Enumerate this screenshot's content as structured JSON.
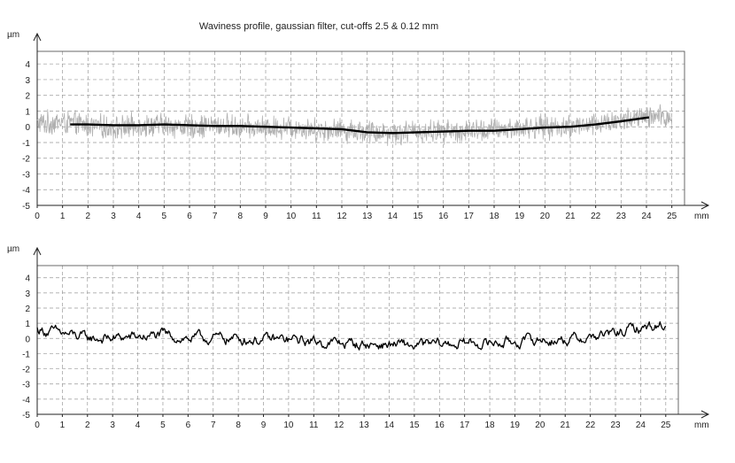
{
  "figure": {
    "title": "Waviness profile, gaussian filter, cut-offs 2.5 & 0.12 mm"
  },
  "chart_data": [
    {
      "type": "line",
      "title": "Waviness profile, gaussian filter, cut-offs 2.5 & 0.12 mm",
      "xlabel": "mm",
      "ylabel": "µm",
      "xlim": [
        0,
        25.5
      ],
      "ylim": [
        -5,
        5
      ],
      "x_ticks": [
        0,
        1,
        2,
        3,
        4,
        5,
        6,
        7,
        8,
        9,
        10,
        11,
        12,
        13,
        14,
        15,
        16,
        17,
        18,
        19,
        20,
        21,
        22,
        23,
        24,
        25
      ],
      "y_ticks": [
        -5,
        -4,
        -3,
        -2,
        -1,
        0,
        1,
        2,
        3,
        4
      ],
      "grid": true,
      "series": [
        {
          "role": "raw-profile",
          "color": "#b0b0b0",
          "x": [
            0,
            1,
            2,
            3,
            4,
            5,
            6,
            7,
            8,
            9,
            10,
            11,
            12,
            13,
            14,
            15,
            16,
            17,
            18,
            19,
            20,
            21,
            22,
            23,
            24,
            25
          ],
          "y": [
            0.2,
            0.3,
            0.1,
            -0.1,
            0.1,
            0.1,
            0.0,
            0.1,
            0.0,
            -0.1,
            0.0,
            -0.2,
            -0.2,
            -0.3,
            -0.4,
            -0.3,
            -0.3,
            -0.3,
            -0.2,
            -0.1,
            0.0,
            0.0,
            0.2,
            0.4,
            0.6,
            0.6
          ],
          "noise_amplitude": 0.9
        },
        {
          "role": "waviness-line",
          "color": "#000000",
          "x": [
            1.3,
            2,
            3,
            4,
            5,
            6,
            7,
            8,
            9,
            10,
            11,
            12,
            13,
            14,
            15,
            16,
            17,
            18,
            19,
            20,
            21,
            22,
            23,
            24.1
          ],
          "y": [
            0.15,
            0.15,
            0.1,
            0.1,
            0.15,
            0.1,
            0.05,
            0.05,
            0.0,
            -0.05,
            -0.1,
            -0.15,
            -0.35,
            -0.4,
            -0.35,
            -0.3,
            -0.25,
            -0.25,
            -0.15,
            -0.05,
            0.0,
            0.15,
            0.35,
            0.6
          ]
        }
      ]
    },
    {
      "type": "line",
      "xlabel": "mm",
      "ylabel": "µm",
      "xlim": [
        0,
        25.5
      ],
      "ylim": [
        -5,
        5
      ],
      "x_ticks": [
        0,
        1,
        2,
        3,
        4,
        5,
        6,
        7,
        8,
        9,
        10,
        11,
        12,
        13,
        14,
        15,
        16,
        17,
        18,
        19,
        20,
        21,
        22,
        23,
        24,
        25
      ],
      "y_ticks": [
        -5,
        -4,
        -3,
        -2,
        -1,
        0,
        1,
        2,
        3,
        4
      ],
      "grid": true,
      "series": [
        {
          "role": "roughness-profile",
          "color": "#000000",
          "x": [
            0,
            1,
            2,
            3,
            4,
            5,
            6,
            7,
            8,
            9,
            10,
            11,
            12,
            13,
            14,
            15,
            16,
            17,
            18,
            19,
            20,
            21,
            22,
            23,
            24,
            25
          ],
          "y": [
            0.6,
            0.3,
            0.0,
            0.0,
            0.1,
            0.2,
            0.0,
            0.0,
            0.0,
            -0.1,
            -0.1,
            -0.2,
            -0.3,
            -0.4,
            -0.4,
            -0.5,
            -0.4,
            -0.3,
            -0.3,
            -0.2,
            -0.1,
            -0.1,
            0.1,
            0.3,
            0.7,
            0.9
          ],
          "noise_amplitude": 0.25
        }
      ]
    }
  ]
}
